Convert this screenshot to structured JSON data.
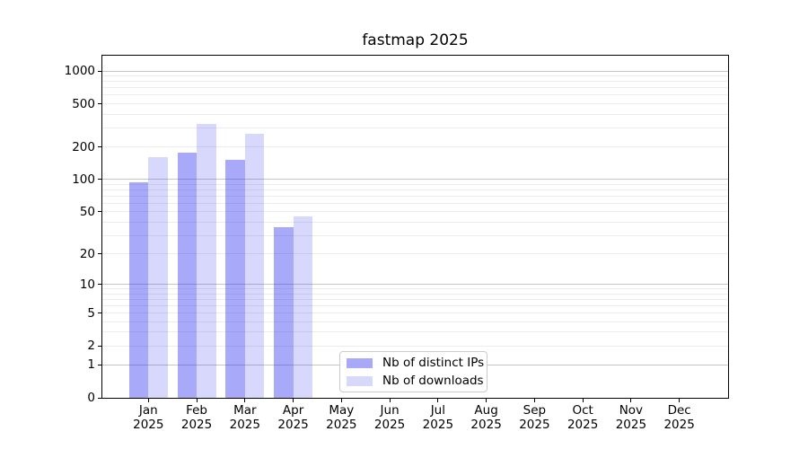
{
  "figure": {
    "background": "#ffffff",
    "axis_color": "#000000"
  },
  "chart_data": {
    "type": "bar",
    "title": "fastmap 2025",
    "xlabel": "",
    "ylabel": "",
    "x_year": "2025",
    "categories": [
      "Jan",
      "Feb",
      "Mar",
      "Apr",
      "May",
      "Jun",
      "Jul",
      "Aug",
      "Sep",
      "Oct",
      "Nov",
      "Dec"
    ],
    "series": [
      {
        "name": "Nb of distinct IPs",
        "color": "rgba(40,40,239,0.40)",
        "values": [
          95,
          177,
          153,
          36,
          null,
          null,
          null,
          null,
          null,
          null,
          null,
          null
        ]
      },
      {
        "name": "Nb of downloads",
        "color": "rgba(40,40,239,0.18)",
        "values": [
          161,
          324,
          264,
          45,
          null,
          null,
          null,
          null,
          null,
          null,
          null,
          null
        ]
      }
    ],
    "yscale": "log1p",
    "yticks": [
      0,
      1,
      2,
      5,
      10,
      20,
      50,
      100,
      200,
      500,
      1000
    ],
    "ylim": [
      0,
      1400
    ],
    "grid": {
      "enabled": true,
      "major_values": [
        1,
        10,
        100,
        1000
      ],
      "major_color": "#c6c6c6",
      "minor_color": "#ececec"
    },
    "legend": {
      "position": "lower center",
      "border_color": "#cccccc",
      "background": "#ffffff"
    }
  }
}
